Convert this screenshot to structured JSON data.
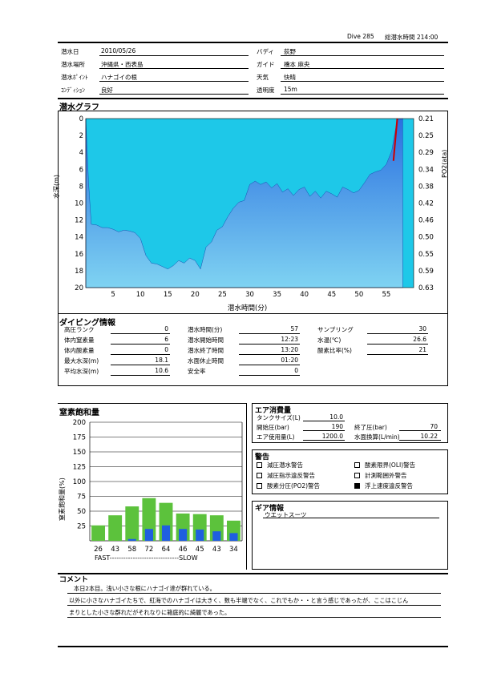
{
  "header": {
    "dive_no": "Dive 285",
    "total_time": "総潜水時間 214:00"
  },
  "info": {
    "date_label": "潜水日",
    "date": "2010/05/26",
    "place_label": "潜水場所",
    "place": "沖縄県・西表島",
    "point_label": "潜水ﾎﾟｲﾝﾄ",
    "point": "ハナゴイの根",
    "cond_label": "ｺﾝﾃﾞｨｼｮﾝ",
    "cond": "良好",
    "buddy_label": "バディ",
    "buddy": "荻野",
    "guide_label": "ガイド",
    "guide": "橋本 麻央",
    "weather_label": "天気",
    "weather": "快晴",
    "vis_label": "透明度",
    "vis": "15m"
  },
  "graph": {
    "title": "潜水グラフ",
    "ylabel": "水深(m)",
    "y2label": "PO2(ata)",
    "xlabel": "潜水時間(分)",
    "colors": {
      "fill_top": "#2a6fe0",
      "fill_bottom": "#7fd3f2",
      "bg": "#1ec8e8",
      "line": "#cc0000"
    }
  },
  "dive_info": {
    "title": "ダイビング情報",
    "col1": [
      {
        "label": "高圧ランク",
        "value": "0"
      },
      {
        "label": "体内窒素量",
        "value": "6"
      },
      {
        "label": "体内酸素量",
        "value": "0"
      },
      {
        "label": "最大水深(m)",
        "value": "18.1"
      },
      {
        "label": "平均水深(m)",
        "value": "10.6"
      }
    ],
    "col2": [
      {
        "label": "潜水時間(分)",
        "value": "57"
      },
      {
        "label": "潜水開始時間",
        "value": "12:23"
      },
      {
        "label": "潜水終了時間",
        "value": "13:20"
      },
      {
        "label": "水面休止時間",
        "value": "01:20"
      },
      {
        "label": "安全率",
        "value": "0"
      }
    ],
    "col3": [
      {
        "label": "サンプリング",
        "value": "30"
      },
      {
        "label": "水温(℃)",
        "value": "26.6"
      },
      {
        "label": "酸素比率(%)",
        "value": "21"
      }
    ]
  },
  "nitrogen": {
    "title": "窒素飽和量",
    "ylabel": "窒素飽和量(%)",
    "speed_label": "FAST------------------------------SLOW"
  },
  "air": {
    "title": "エア消費量",
    "tank_label": "タンクサイズ(L)",
    "tank": "10.0",
    "start_label": "開始圧(bar)",
    "start": "190",
    "end_label": "終了圧(bar)",
    "end": "70",
    "used_label": "エア使用量(L)",
    "used": "1200.0",
    "surface_label": "水面換算(L/min)",
    "surface": "10.22"
  },
  "warnings": {
    "title": "警告",
    "items": [
      {
        "label": "減圧潜水警告",
        "checked": false
      },
      {
        "label": "酸素限界(OLI)警告",
        "checked": false
      },
      {
        "label": "減圧指示違反警告",
        "checked": false
      },
      {
        "label": "計測範囲外警告",
        "checked": false
      },
      {
        "label": "酸素分圧(PO2)警告",
        "checked": false
      },
      {
        "label": "浮上速度違反警告",
        "checked": true
      }
    ]
  },
  "gear": {
    "title": "ギア情報",
    "text": "ウエットスーツ"
  },
  "comment": {
    "title": "コメント",
    "lines": [
      "本日2本目。浅い小さな根にハナゴイ達が群れている。",
      "以外に小さなハナゴイたちで、紅海でのハナゴイは大きく、数も半端でなく、これでもか・・と言う感じであったが、ここはこじん",
      "まりとした小さな群れだがそれなりに箱庭的に綺麗であった。"
    ]
  },
  "chart_data": [
    {
      "type": "area",
      "title": "潜水グラフ",
      "xlabel": "潜水時間(分)",
      "ylabel": "水深(m)",
      "y2label": "PO2(ata)",
      "xlim": [
        0,
        60
      ],
      "ylim": [
        20,
        0
      ],
      "xticks": [
        5,
        10,
        15,
        20,
        25,
        30,
        35,
        40,
        45,
        50,
        55
      ],
      "yticks": [
        0,
        2,
        4,
        6,
        8,
        10,
        12,
        14,
        16,
        18,
        20
      ],
      "y2ticks": [
        "0.21",
        "0.25",
        "0.29",
        "0.34",
        "0.38",
        "0.42",
        "0.46",
        "0.50",
        "0.55",
        "0.59",
        "0.63"
      ],
      "x": [
        0,
        0.5,
        1,
        2,
        3,
        4,
        5,
        6,
        7,
        8,
        9,
        10,
        11,
        12,
        13,
        14,
        15,
        16,
        17,
        18,
        19,
        20,
        21,
        22,
        23,
        24,
        25,
        26,
        27,
        28,
        29,
        30,
        31,
        32,
        33,
        34,
        35,
        36,
        37,
        38,
        39,
        40,
        41,
        42,
        43,
        44,
        45,
        46,
        47,
        48,
        49,
        50,
        51,
        52,
        53,
        54,
        55,
        56,
        57,
        58
      ],
      "y": [
        0,
        7.5,
        12.5,
        12.6,
        12.9,
        12.9,
        13.1,
        13.4,
        13.2,
        13.3,
        13.5,
        14.2,
        16.2,
        17.1,
        17.2,
        17.5,
        17.8,
        17.4,
        16.8,
        17.1,
        16.5,
        16.8,
        17.8,
        15.2,
        14.6,
        13.2,
        12.8,
        11.6,
        10.6,
        9.9,
        9.7,
        7.8,
        7.4,
        7.8,
        7.5,
        8.2,
        7.7,
        8.7,
        8.3,
        9.1,
        8.4,
        8.1,
        9.2,
        8.6,
        9.4,
        8.6,
        8.9,
        9.3,
        8.1,
        8.4,
        8.8,
        8.5,
        7.6,
        6.6,
        6.3,
        6.1,
        5.4,
        3.8,
        0.1,
        0
      ],
      "ascent_warning_segment": {
        "x": [
          56.3,
          57
        ],
        "y": [
          5.0,
          0
        ]
      }
    },
    {
      "type": "bar",
      "title": "窒素飽和量",
      "ylabel": "窒素飽和量(%)",
      "ylim": [
        0,
        200
      ],
      "yticks": [
        25,
        50,
        75,
        100,
        125,
        150,
        175,
        200
      ],
      "categories": [
        "26",
        "43",
        "58",
        "72",
        "64",
        "46",
        "45",
        "43",
        "34"
      ],
      "series": [
        {
          "values": [
            26,
            43,
            58,
            72,
            64,
            46,
            45,
            43,
            34
          ],
          "color": "#5cc23c"
        },
        {
          "values": [
            0,
            0,
            3,
            20,
            26,
            20,
            19,
            16,
            13
          ],
          "color": "#1f5fe0"
        }
      ]
    }
  ]
}
